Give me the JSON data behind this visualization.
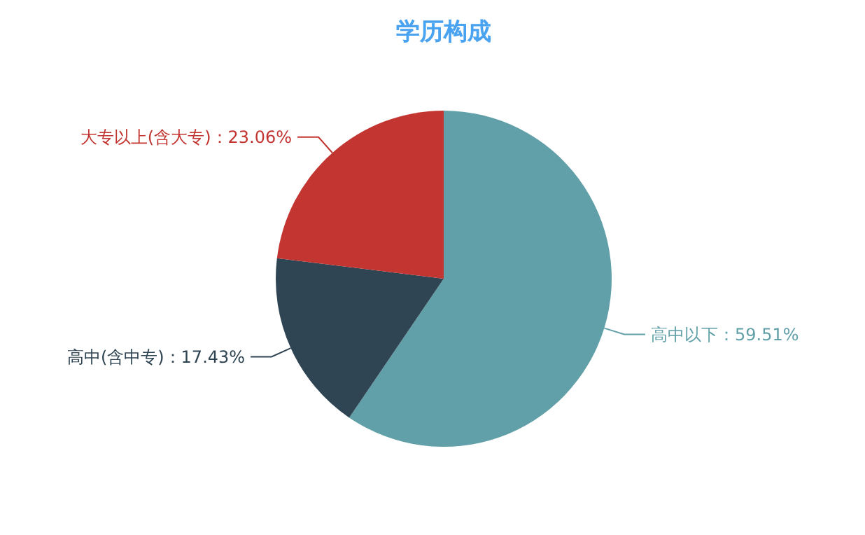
{
  "chart_data": {
    "type": "pie",
    "title": "学历构成",
    "categories": [
      "高中以下",
      "高中(含中专)",
      "大专以上(含大专)"
    ],
    "values": [
      59.51,
      17.43,
      23.06
    ],
    "colors": [
      "#61a0a8",
      "#2f4554",
      "#c23531"
    ],
    "data_labels": true,
    "value_labels": [
      "：59.51%",
      "：17.43%",
      "：23.06%"
    ]
  }
}
